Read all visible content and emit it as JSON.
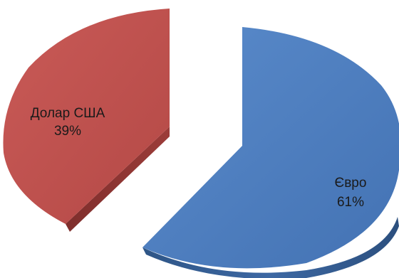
{
  "chart_data": {
    "type": "pie",
    "title": "",
    "style": "3d-exploded",
    "slices": [
      {
        "label": "Євро",
        "value": 61,
        "percent_label": "61%",
        "color": "#4F7EBE"
      },
      {
        "label": "Долар США",
        "value": 39,
        "percent_label": "39%",
        "color": "#C0504D"
      }
    ],
    "legend": "none"
  }
}
